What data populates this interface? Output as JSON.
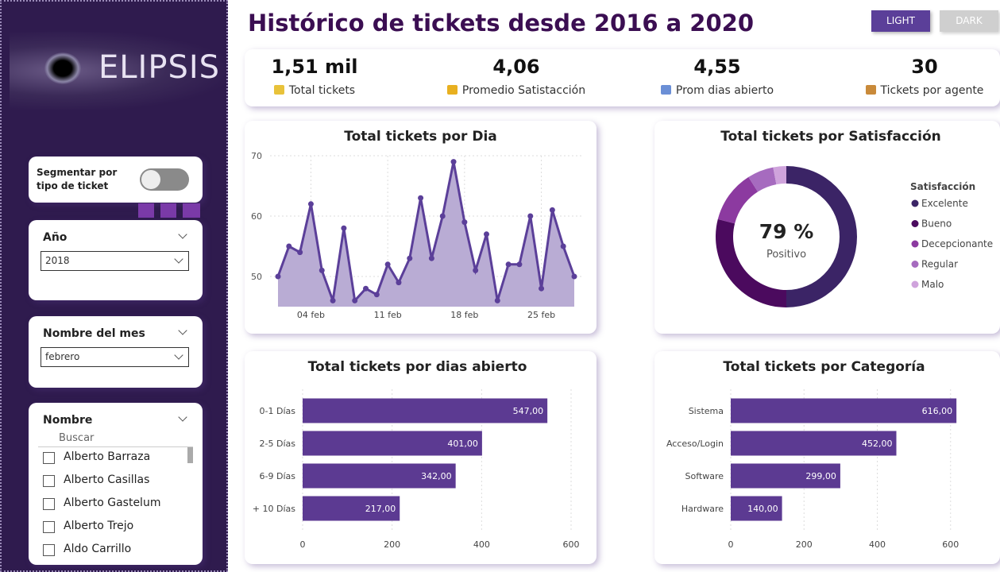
{
  "header": {
    "title": "Histórico de tickets desde 2016 a 2020",
    "theme_buttons": [
      "LIGHT",
      "DARK"
    ]
  },
  "sidebar": {
    "logo": "ELIPSIS",
    "toggle_label": "Segmentar por tipo de ticket",
    "year_slicer": {
      "title": "Año",
      "value": "2018"
    },
    "month_slicer": {
      "title": "Nombre del mes",
      "value": "febrero"
    },
    "name_slicer": {
      "title": "Nombre",
      "search_placeholder": "Buscar",
      "items": [
        "Alberto Barraza",
        "Alberto Casillas",
        "Alberto Gastelum",
        "Alberto Trejo",
        "Aldo Carrillo"
      ]
    }
  },
  "kpis": [
    {
      "value": "1,51 mil",
      "label": "Total tickets"
    },
    {
      "value": "4,06",
      "label": "Promedio Satistacción"
    },
    {
      "value": "4,55",
      "label": "Prom dias abierto"
    },
    {
      "value": "30",
      "label": "Tickets por agente"
    }
  ],
  "chart_data": [
    {
      "type": "line",
      "title": "Total tickets por Dia",
      "categories": [
        null,
        null,
        null,
        "04 feb",
        null,
        null,
        null,
        null,
        null,
        null,
        "11 feb",
        null,
        null,
        null,
        null,
        null,
        null,
        "18 feb",
        null,
        null,
        null,
        null,
        null,
        null,
        "25 feb",
        null,
        null,
        null
      ],
      "values": [
        50,
        55,
        54,
        62,
        51,
        46,
        58,
        46,
        48,
        47,
        52,
        49,
        53,
        63,
        53,
        60,
        69,
        59,
        51,
        57,
        46,
        52,
        52,
        60,
        48,
        61,
        55,
        50
      ],
      "color": "#5b3f99",
      "area_color": "#b9acd4",
      "ylim": [
        45,
        70
      ],
      "yticks": [
        50,
        60,
        70
      ],
      "grid": true
    },
    {
      "type": "pie",
      "title": "Total tickets por Satisfacción",
      "legend_title": "Satisfacción",
      "categories": [
        "Excelente",
        "Bueno",
        "Decepcionante",
        "Regular",
        "Malo"
      ],
      "values": [
        50,
        29,
        12,
        6,
        3
      ],
      "colors": [
        "#3b2466",
        "#4b0a5e",
        "#8c3aa0",
        "#a66bbf",
        "#cfa3dc"
      ],
      "center_value": "79 %",
      "center_label": "Positivo"
    },
    {
      "type": "hbar",
      "title": "Total tickets por dias abierto",
      "categories": [
        "0-1 Días",
        "2-5 Días",
        "6-9 Días",
        "+ 10 Días"
      ],
      "values": [
        547,
        401,
        342,
        217
      ],
      "value_labels": [
        "547,00",
        "401,00",
        "342,00",
        "217,00"
      ],
      "color": "#5c3a92",
      "xlim": [
        0,
        600
      ],
      "xticks": [
        0,
        200,
        400,
        600
      ],
      "grid": true
    },
    {
      "type": "hbar",
      "title": "Total tickets por Categoría",
      "categories": [
        "Sistema",
        "Acceso/Login",
        "Software",
        "Hardware"
      ],
      "values": [
        616,
        452,
        299,
        140
      ],
      "value_labels": [
        "616,00",
        "452,00",
        "299,00",
        "140,00"
      ],
      "color": "#5c3a92",
      "xlim": [
        0,
        620
      ],
      "xticks": [
        0,
        200,
        400,
        600
      ],
      "grid": true
    }
  ]
}
